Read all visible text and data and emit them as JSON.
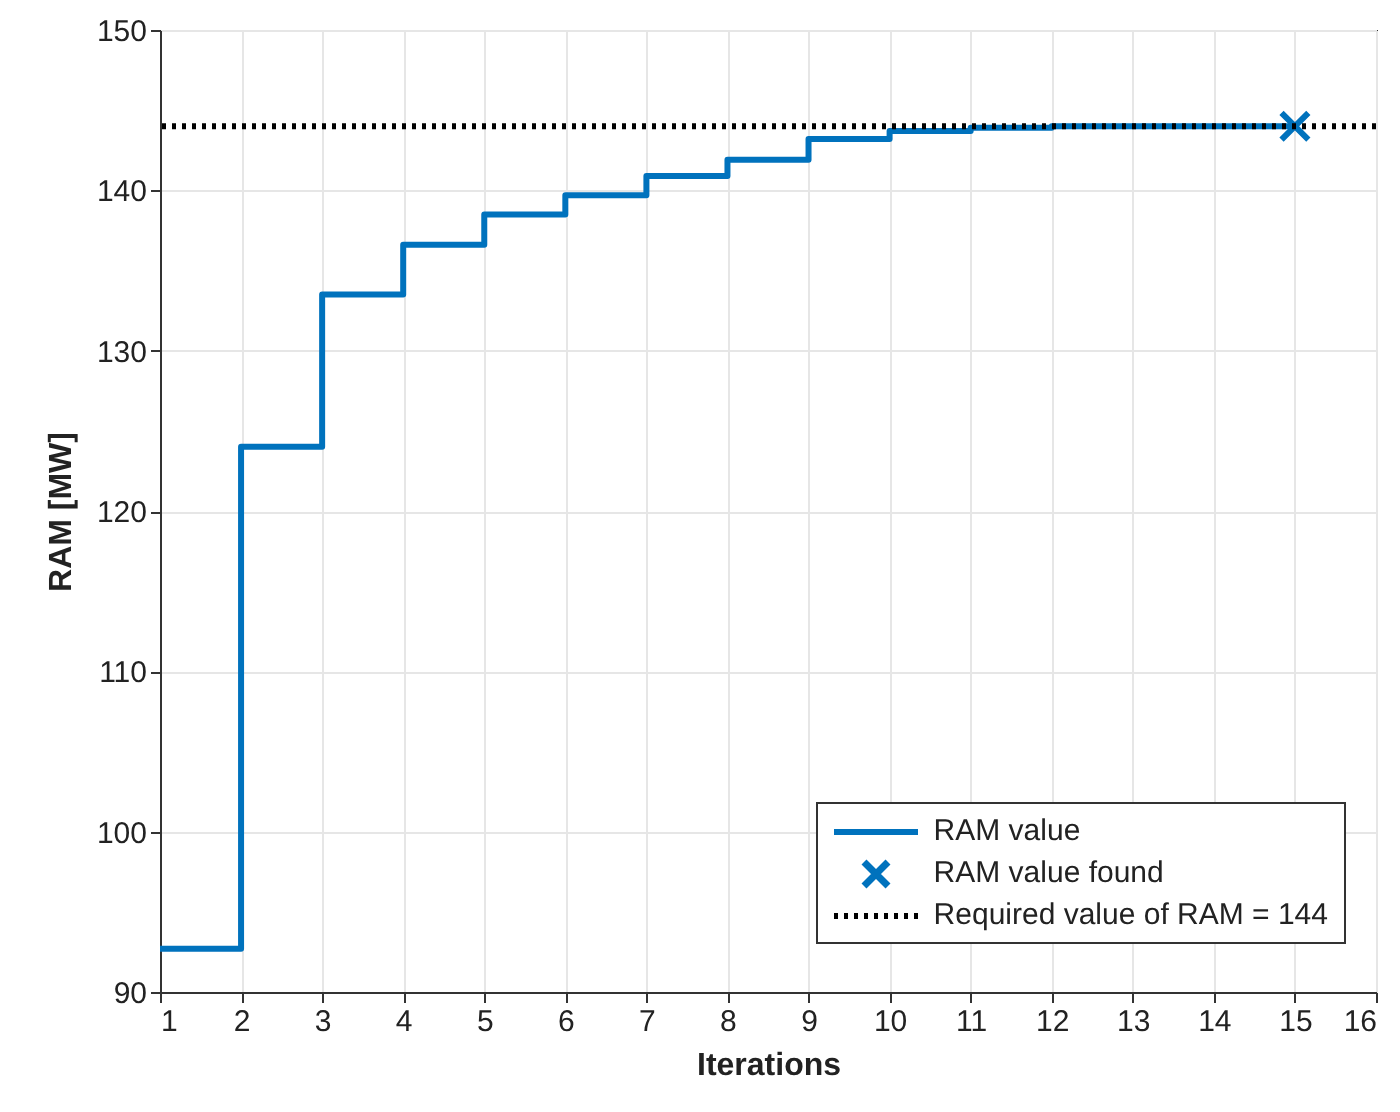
{
  "chart_data": {
    "type": "step",
    "xlabel": "Iterations",
    "ylabel": "RAM [MW]",
    "x": [
      1,
      2,
      3,
      4,
      5,
      6,
      7,
      8,
      9,
      10,
      11,
      12,
      13,
      14,
      15
    ],
    "series": [
      {
        "name": "RAM value",
        "type": "step",
        "color": "#0072bd",
        "values": [
          92.7,
          124,
          133.5,
          136.6,
          138.5,
          139.7,
          140.9,
          141.9,
          143.2,
          143.7,
          143.9,
          144,
          144,
          144,
          144
        ]
      },
      {
        "name": "RAM value found",
        "type": "scatter",
        "marker": "cross",
        "color": "#0072bd",
        "x": [
          15
        ],
        "values": [
          144
        ]
      }
    ],
    "ref_lines": [
      {
        "axis": "y",
        "value": 144,
        "label": "Required value of RAM = 144",
        "color": "#000000",
        "line_style": "dotted"
      }
    ],
    "xlim": [
      1,
      16
    ],
    "xticks": [
      1,
      2,
      3,
      4,
      5,
      6,
      7,
      8,
      9,
      10,
      11,
      12,
      13,
      14,
      15,
      16
    ],
    "ylim": [
      90,
      150
    ],
    "yticks": [
      90,
      100,
      110,
      120,
      130,
      140,
      150
    ],
    "grid": true,
    "legend": "bottom right"
  }
}
